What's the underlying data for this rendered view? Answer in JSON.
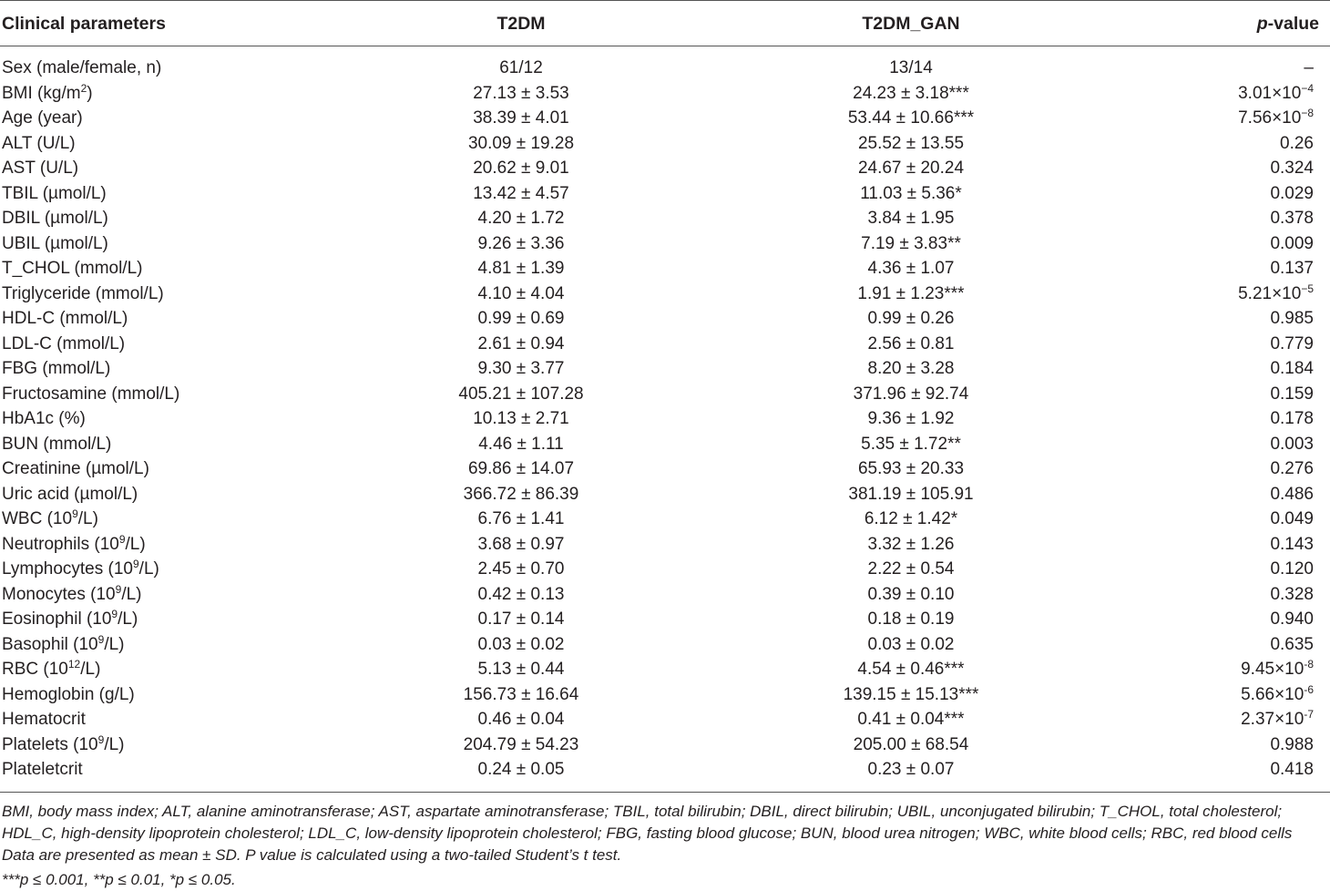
{
  "table": {
    "headers": {
      "param": "Clinical parameters",
      "t2dm": "T2DM",
      "t2dm_gan": "T2DM_GAN",
      "p_italic": "p",
      "p_rest": "-value"
    },
    "rows": [
      {
        "param": "Sex (male/female, n)",
        "t2dm": "61/12",
        "gan": "13/14",
        "p": "–"
      },
      {
        "param": "BMI (kg/m",
        "param_sup": "2",
        "param_after": ")",
        "t2dm": "27.13 ± 3.53",
        "gan": "24.23 ± 3.18***",
        "p": "3.01×10",
        "p_sup": "−4"
      },
      {
        "param": "Age (year)",
        "t2dm": "38.39 ± 4.01",
        "gan": "53.44 ± 10.66***",
        "p": "7.56×10",
        "p_sup": "−8"
      },
      {
        "param": "ALT (U/L)",
        "t2dm": "30.09 ± 19.28",
        "gan": "25.52 ± 13.55",
        "p": "0.26"
      },
      {
        "param": "AST (U/L)",
        "t2dm": "20.62 ± 9.01",
        "gan": "24.67 ± 20.24",
        "p": "0.324"
      },
      {
        "param": "TBIL (µmol/L)",
        "t2dm": "13.42 ± 4.57",
        "gan": "11.03 ± 5.36*",
        "p": "0.029"
      },
      {
        "param": "DBIL (µmol/L)",
        "t2dm": "4.20 ± 1.72",
        "gan": "3.84 ± 1.95",
        "p": "0.378"
      },
      {
        "param": "UBIL (µmol/L)",
        "t2dm": "9.26 ± 3.36",
        "gan": "7.19 ± 3.83**",
        "p": "0.009"
      },
      {
        "param": "T_CHOL (mmol/L)",
        "t2dm": "4.81 ± 1.39",
        "gan": "4.36 ± 1.07",
        "p": "0.137"
      },
      {
        "param": "Triglyceride (mmol/L)",
        "t2dm": "4.10 ± 4.04",
        "gan": "1.91 ± 1.23***",
        "p": "5.21×10",
        "p_sup": "−5"
      },
      {
        "param": "HDL-C (mmol/L)",
        "t2dm": "0.99 ± 0.69",
        "gan": "0.99 ± 0.26",
        "p": "0.985"
      },
      {
        "param": "LDL-C (mmol/L)",
        "t2dm": "2.61 ± 0.94",
        "gan": "2.56 ± 0.81",
        "p": "0.779"
      },
      {
        "param": "FBG (mmol/L)",
        "t2dm": "9.30 ± 3.77",
        "gan": "8.20 ± 3.28",
        "p": "0.184"
      },
      {
        "param": "Fructosamine (mmol/L)",
        "t2dm": "405.21 ± 107.28",
        "gan": "371.96 ± 92.74",
        "p": "0.159"
      },
      {
        "param": "HbA1c (%)",
        "t2dm": "10.13 ± 2.71",
        "gan": "9.36 ± 1.92",
        "p": "0.178"
      },
      {
        "param": "BUN (mmol/L)",
        "t2dm": "4.46 ± 1.11",
        "gan": "5.35 ± 1.72**",
        "p": "0.003"
      },
      {
        "param": "Creatinine (µmol/L)",
        "t2dm": "69.86 ± 14.07",
        "gan": "65.93 ± 20.33",
        "p": "0.276"
      },
      {
        "param": "Uric acid (µmol/L)",
        "t2dm": "366.72 ± 86.39",
        "gan": "381.19 ± 105.91",
        "p": "0.486"
      },
      {
        "param": "WBC (10",
        "param_sup": "9",
        "param_after": "/L)",
        "t2dm": "6.76 ± 1.41",
        "gan": "6.12 ± 1.42*",
        "p": "0.049"
      },
      {
        "param": "Neutrophils (10",
        "param_sup": "9",
        "param_after": "/L)",
        "t2dm": "3.68 ± 0.97",
        "gan": "3.32 ± 1.26",
        "p": "0.143"
      },
      {
        "param": "Lymphocytes (10",
        "param_sup": "9",
        "param_after": "/L)",
        "t2dm": "2.45 ± 0.70",
        "gan": "2.22 ± 0.54",
        "p": "0.120"
      },
      {
        "param": "Monocytes (10",
        "param_sup": "9",
        "param_after": "/L)",
        "t2dm": "0.42 ± 0.13",
        "gan": "0.39 ± 0.10",
        "p": "0.328"
      },
      {
        "param": "Eosinophil (10",
        "param_sup": "9",
        "param_after": "/L)",
        "t2dm": "0.17 ± 0.14",
        "gan": "0.18 ± 0.19",
        "p": "0.940"
      },
      {
        "param": "Basophil (10",
        "param_sup": "9",
        "param_after": "/L)",
        "t2dm": "0.03 ± 0.02",
        "gan": "0.03 ± 0.02",
        "p": "0.635"
      },
      {
        "param": "RBC (10",
        "param_sup": "12",
        "param_after": "/L)",
        "t2dm": "5.13 ± 0.44",
        "gan": "4.54 ± 0.46***",
        "p": "9.45×10",
        "p_sup": "-8"
      },
      {
        "param": "Hemoglobin (g/L)",
        "t2dm": "156.73 ± 16.64",
        "gan": "139.15 ± 15.13***",
        "p": "5.66×10",
        "p_sup": "-6"
      },
      {
        "param": "Hematocrit",
        "t2dm": "0.46 ± 0.04",
        "gan": "0.41 ± 0.04***",
        "p": "2.37×10",
        "p_sup": "-7"
      },
      {
        "param": "Platelets (10",
        "param_sup": "9",
        "param_after": "/L)",
        "t2dm": "204.79 ± 54.23",
        "gan": "205.00 ± 68.54",
        "p": "0.988"
      },
      {
        "param": "Plateletcrit",
        "t2dm": "0.24 ± 0.05",
        "gan": "0.23 ± 0.07",
        "p": "0.418"
      }
    ]
  },
  "footnotes": {
    "abbreviations": "BMI, body mass index; ALT, alanine aminotransferase; AST, aspartate aminotransferase; TBIL, total bilirubin; DBIL, direct bilirubin; UBIL, unconjugated bilirubin; T_CHOL, total cholesterol; HDL_C, high-density lipoprotein cholesterol; LDL_C, low-density lipoprotein cholesterol; FBG, fasting blood glucose; BUN, blood urea nitrogen; WBC, white blood cells; RBC, red blood cells",
    "data_note": "Data are presented as mean ± SD. P value is calculated using a two-tailed Student’s t test.",
    "significance": "***p ≤ 0.001, **p ≤ 0.01, *p ≤ 0.05."
  }
}
